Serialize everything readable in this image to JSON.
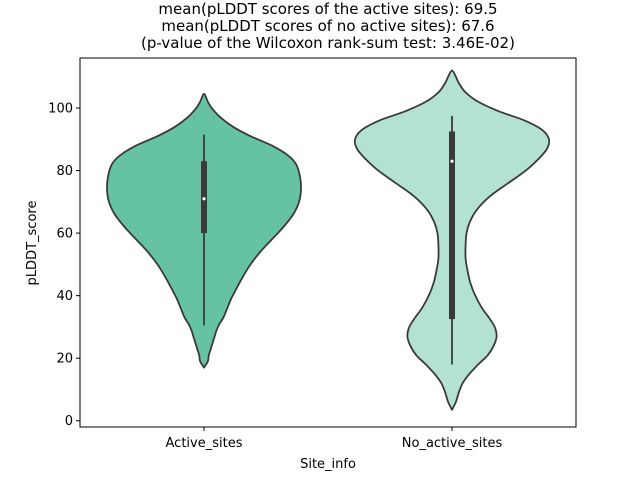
{
  "chart_data": {
    "type": "violin",
    "title_lines": [
      "mean(pLDDT scores of the active sites): 69.5",
      "mean(pLDDT scores of no active sites): 67.6",
      "(p-value of the Wilcoxon rank-sum test: 3.46E-02)"
    ],
    "xlabel": "Site_info",
    "ylabel": "pLDDT_score",
    "categories": [
      "Active_sites",
      "No_active_sites"
    ],
    "ylim": [
      -2,
      116
    ],
    "yticks": [
      0,
      20,
      40,
      60,
      80,
      100
    ],
    "grid": false,
    "colors": {
      "Active_sites": "#66c2a5",
      "No_active_sites": "#b3e2d4",
      "outline": "#3a3a3a",
      "box": "#3a3a3a",
      "median": "#ffffff"
    },
    "violins": [
      {
        "category": "Active_sites",
        "min": 30.5,
        "q1": 60,
        "median": 71,
        "q3": 83,
        "max": 91.5,
        "kde_range": [
          17,
          104.5
        ],
        "density": [
          [
            17,
            0.0
          ],
          [
            19,
            0.04
          ],
          [
            21,
            0.05
          ],
          [
            23,
            0.07
          ],
          [
            25,
            0.09
          ],
          [
            27,
            0.11
          ],
          [
            29,
            0.13
          ],
          [
            31,
            0.16
          ],
          [
            33,
            0.2
          ],
          [
            36,
            0.24
          ],
          [
            39,
            0.28
          ],
          [
            42,
            0.33
          ],
          [
            46,
            0.4
          ],
          [
            50,
            0.48
          ],
          [
            54,
            0.58
          ],
          [
            58,
            0.7
          ],
          [
            62,
            0.82
          ],
          [
            66,
            0.92
          ],
          [
            70,
            0.98
          ],
          [
            74,
            1.0
          ],
          [
            78,
            0.99
          ],
          [
            82,
            0.95
          ],
          [
            85,
            0.86
          ],
          [
            88,
            0.7
          ],
          [
            91,
            0.48
          ],
          [
            94,
            0.3
          ],
          [
            97,
            0.17
          ],
          [
            100,
            0.08
          ],
          [
            102,
            0.04
          ],
          [
            104.5,
            0.0
          ]
        ]
      },
      {
        "category": "No_active_sites",
        "min": 18,
        "q1": 32.5,
        "median": 83,
        "q3": 92.5,
        "max": 97.5,
        "kde_range": [
          3.5,
          112
        ],
        "density": [
          [
            3.5,
            0.0
          ],
          [
            6,
            0.04
          ],
          [
            9,
            0.07
          ],
          [
            12,
            0.11
          ],
          [
            15,
            0.18
          ],
          [
            18,
            0.27
          ],
          [
            21,
            0.37
          ],
          [
            24,
            0.43
          ],
          [
            27,
            0.46
          ],
          [
            30,
            0.44
          ],
          [
            33,
            0.38
          ],
          [
            36,
            0.31
          ],
          [
            40,
            0.24
          ],
          [
            44,
            0.19
          ],
          [
            48,
            0.16
          ],
          [
            52,
            0.14
          ],
          [
            56,
            0.14
          ],
          [
            60,
            0.15
          ],
          [
            64,
            0.19
          ],
          [
            68,
            0.27
          ],
          [
            72,
            0.4
          ],
          [
            76,
            0.58
          ],
          [
            80,
            0.76
          ],
          [
            84,
            0.9
          ],
          [
            87,
            0.98
          ],
          [
            90,
            1.0
          ],
          [
            93,
            0.93
          ],
          [
            96,
            0.75
          ],
          [
            99,
            0.48
          ],
          [
            102,
            0.27
          ],
          [
            105,
            0.14
          ],
          [
            108,
            0.07
          ],
          [
            110,
            0.04
          ],
          [
            112,
            0.0
          ]
        ]
      }
    ]
  }
}
